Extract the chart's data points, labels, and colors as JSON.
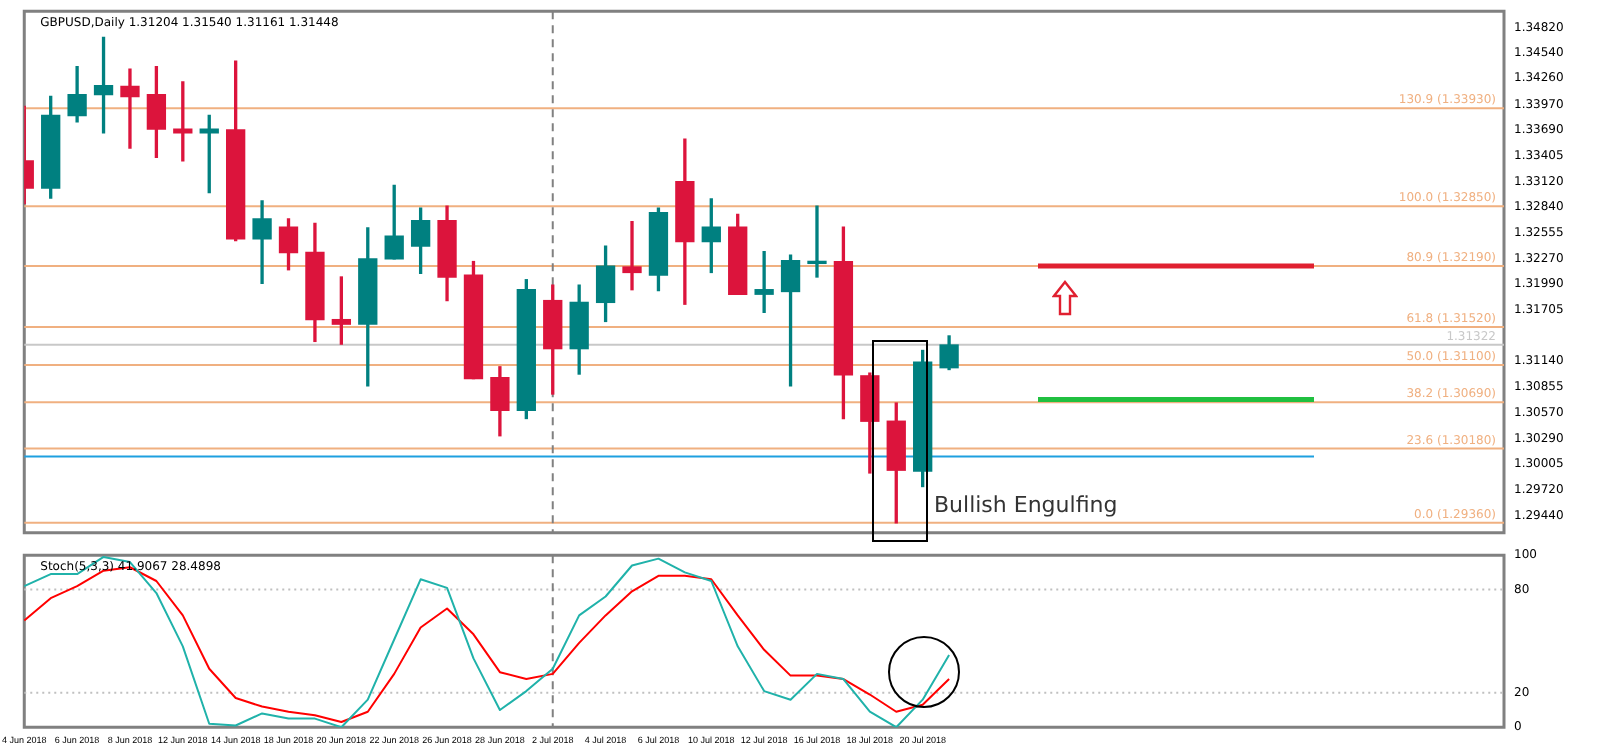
{
  "chart_data": [
    {
      "type": "candlestick",
      "title": "GBPUSD,Daily 1.31204 1.31540 1.31161 1.31448",
      "categories": [
        "4 Jun 2018",
        null,
        "6 Jun 2018",
        null,
        "8 Jun 2018",
        null,
        "12 Jun 2018",
        null,
        "14 Jun 2018",
        null,
        "18 Jun 2018",
        null,
        "20 Jun 2018",
        null,
        "22 Jun 2018",
        null,
        "26 Jun 2018",
        null,
        "28 Jun 2018",
        null,
        "2 Jul 2018",
        null,
        "4 Jul 2018",
        null,
        "6 Jul 2018",
        null,
        "10 Jul 2018",
        null,
        "12 Jul 2018",
        null,
        "16 Jul 2018",
        null,
        "18 Jul 2018",
        null,
        "20 Jul 2018",
        null,
        null,
        null,
        null,
        null,
        null,
        null,
        null,
        null,
        null,
        null,
        null,
        null,
        null,
        null,
        null,
        null,
        null,
        null,
        null,
        null,
        null
      ],
      "ohlc": [
        [
          1.3335,
          1.3395,
          1.3288,
          1.3305
        ],
        [
          1.3305,
          1.3406,
          1.3294,
          1.3385
        ],
        [
          1.3385,
          1.3439,
          1.3378,
          1.3408
        ],
        [
          1.3408,
          1.3471,
          1.3366,
          1.3418
        ],
        [
          1.3417,
          1.3436,
          1.3349,
          1.3406
        ],
        [
          1.3408,
          1.3439,
          1.3339,
          1.337
        ],
        [
          1.337,
          1.3422,
          1.3335,
          1.3366
        ],
        [
          1.3366,
          1.3385,
          1.33,
          1.337
        ],
        [
          1.3369,
          1.3445,
          1.3247,
          1.3249
        ],
        [
          1.3249,
          1.3291,
          1.32,
          1.3271
        ],
        [
          1.3262,
          1.3271,
          1.3215,
          1.3234
        ],
        [
          1.3234,
          1.3266,
          1.3136,
          1.316
        ],
        [
          1.316,
          1.3207,
          1.3133,
          1.3155
        ],
        [
          1.3155,
          1.3261,
          1.3087,
          1.3227
        ],
        [
          1.3227,
          1.3308,
          1.3227,
          1.3252
        ],
        [
          1.3241,
          1.3283,
          1.3211,
          1.3269
        ],
        [
          1.3269,
          1.3285,
          1.3181,
          1.3207
        ],
        [
          1.3209,
          1.3224,
          1.3095,
          1.3095
        ],
        [
          1.3096,
          1.3108,
          1.3032,
          1.306
        ],
        [
          1.306,
          1.3204,
          1.3051,
          1.3193
        ],
        [
          1.3181,
          1.3198,
          1.3078,
          1.3128
        ],
        [
          1.3128,
          1.3198,
          1.31,
          1.3179
        ],
        [
          1.3179,
          1.3241,
          1.3158,
          1.3219
        ],
        [
          1.3218,
          1.3268,
          1.3193,
          1.3212
        ],
        [
          1.3209,
          1.3283,
          1.3192,
          1.3278
        ],
        [
          1.3312,
          1.3359,
          1.3177,
          1.3246
        ],
        [
          1.3246,
          1.3293,
          1.3212,
          1.3262
        ],
        [
          1.3262,
          1.3276,
          1.3188,
          1.3188
        ],
        [
          1.3188,
          1.3235,
          1.3168,
          1.3193
        ],
        [
          1.3191,
          1.3231,
          1.3087,
          1.3225
        ],
        [
          1.3222,
          1.3285,
          1.3207,
          1.3224
        ],
        [
          1.3224,
          1.3262,
          1.3051,
          1.3099
        ],
        [
          1.3098,
          1.3101,
          1.2991,
          1.3048
        ],
        [
          1.3048,
          1.3068,
          1.2936,
          1.2994
        ],
        [
          1.2993,
          1.3126,
          1.2976,
          1.3113
        ],
        [
          1.3107,
          1.3142,
          1.3105,
          1.3132
        ],
        null,
        null,
        null,
        null,
        null,
        null,
        null,
        null,
        null,
        null,
        null,
        null,
        null,
        null,
        null,
        null,
        null,
        null,
        null,
        null,
        null
      ],
      "colors": [
        "#dc143c",
        "#008080",
        "#008080",
        "#008080",
        "#dc143c",
        "#dc143c",
        "#dc143c",
        "#008080",
        "#dc143c",
        "#008080",
        "#dc143c",
        "#dc143c",
        "#dc143c",
        "#008080",
        "#008080",
        "#008080",
        "#dc143c",
        "#dc143c",
        "#dc143c",
        "#008080",
        "#dc143c",
        "#008080",
        "#008080",
        "#dc143c",
        "#008080",
        "#dc143c",
        "#008080",
        "#dc143c",
        "#008080",
        "#008080",
        "#008080",
        "#dc143c",
        "#dc143c",
        "#dc143c",
        "#008080",
        "#008080",
        null,
        null,
        null,
        null,
        null,
        null,
        null,
        null,
        null,
        null,
        null,
        null,
        null,
        null,
        null,
        null,
        null,
        null,
        null,
        null,
        null
      ],
      "ylim": [
        1.2925,
        1.35
      ],
      "yticks": [
        {
          "value": 1.2944,
          "label": "1.29440"
        },
        {
          "value": 1.2972,
          "label": "1.29720"
        },
        {
          "value": 1.30005,
          "label": "1.30005"
        },
        {
          "value": 1.3029,
          "label": "1.30290"
        },
        {
          "value": 1.3057,
          "label": "1.30570"
        },
        {
          "value": 1.30855,
          "label": "1.30855"
        },
        {
          "value": 1.3114,
          "label": "1.31140"
        },
        {
          "value": 1.31705,
          "label": "1.31705"
        },
        {
          "value": 1.3199,
          "label": "1.31990"
        },
        {
          "value": 1.3227,
          "label": "1.32270"
        },
        {
          "value": 1.32555,
          "label": "1.32555"
        },
        {
          "value": 1.3284,
          "label": "1.32840"
        },
        {
          "value": 1.3312,
          "label": "1.33120"
        },
        {
          "value": 1.33405,
          "label": "1.33405"
        },
        {
          "value": 1.3369,
          "label": "1.33690"
        },
        {
          "value": 1.3397,
          "label": "1.33970"
        },
        {
          "value": 1.3426,
          "label": "1.34260"
        },
        {
          "value": 1.3454,
          "label": "1.34540"
        },
        {
          "value": 1.3482,
          "label": "1.34820"
        }
      ],
      "tick_labels": "y",
      "grid": false,
      "ref_lines": [
        {
          "axis": "y",
          "value": 1.2936,
          "label": "0.0 (1.29360)",
          "color": "#f0b080"
        },
        {
          "axis": "y",
          "value": 1.3018,
          "label": "23.6 (1.30180)",
          "color": "#f0b080"
        },
        {
          "axis": "y",
          "value": 1.3069,
          "label": "38.2 (1.30690)",
          "color": "#f0b080"
        },
        {
          "axis": "y",
          "value": 1.311,
          "label": "50.0 (1.31100)",
          "color": "#f0b080"
        },
        {
          "axis": "y",
          "value": 1.3152,
          "label": "61.8 (1.31520)",
          "color": "#f0b080"
        },
        {
          "axis": "y",
          "value": 1.3219,
          "label": "80.9 (1.32190)",
          "color": "#f0b080"
        },
        {
          "axis": "y",
          "value": 1.3285,
          "label": "100.0 (1.32850)",
          "color": "#f0b080"
        },
        {
          "axis": "y",
          "value": 1.3393,
          "label": "130.9 (1.33930)",
          "color": "#f0b080"
        },
        {
          "axis": "y",
          "value": 1.31322,
          "label": "1.31322",
          "color": "#c8c8c8"
        },
        {
          "axis": "y",
          "value": 1.3009,
          "color": "#1ea0e0"
        },
        {
          "axis": "y",
          "value": 1.3219,
          "color": "#e02030"
        },
        {
          "axis": "y",
          "value": 1.3072,
          "color": "#20c040"
        },
        {
          "axis": "x",
          "value": "2 Jul 2018",
          "color": "#808080",
          "line_style": "dashed"
        }
      ],
      "annotations": [
        "Bullish Engulfing"
      ]
    },
    {
      "type": "line",
      "title": "Stoch(5,3,3) 41.9067 28.4898",
      "categories": [
        "4 Jun 2018",
        null,
        "6 Jun 2018",
        null,
        "8 Jun 2018",
        null,
        "12 Jun 2018",
        null,
        "14 Jun 2018",
        null,
        "18 Jun 2018",
        null,
        "20 Jun 2018",
        null,
        "22 Jun 2018",
        null,
        "26 Jun 2018",
        null,
        "28 Jun 2018",
        null,
        "2 Jul 2018",
        null,
        "4 Jul 2018",
        null,
        "6 Jul 2018",
        null,
        "10 Jul 2018",
        null,
        "12 Jul 2018",
        null,
        "16 Jul 2018",
        null,
        "18 Jul 2018",
        null,
        "20 Jul 2018",
        null,
        null,
        null,
        null,
        null,
        null,
        null,
        null,
        null,
        null,
        null,
        null,
        null,
        null,
        null,
        null,
        null,
        null,
        null,
        null,
        null,
        null
      ],
      "series": [
        {
          "color": "#20b2aa",
          "values": [
            82,
            89,
            89,
            99,
            96,
            78,
            47,
            2,
            1,
            8,
            5,
            5,
            0,
            16,
            51,
            86,
            81,
            40,
            10,
            21,
            34,
            65,
            76,
            94,
            98,
            90,
            85,
            47,
            21,
            16,
            31,
            28,
            9,
            0,
            16,
            42,
            null,
            null,
            null,
            null,
            null,
            null,
            null,
            null,
            null,
            null,
            null,
            null,
            null,
            null,
            null,
            null,
            null,
            null,
            null,
            null,
            null
          ]
        },
        {
          "color": "#ff0000",
          "values": [
            62,
            75,
            82,
            91,
            93,
            85,
            65,
            34,
            17,
            12,
            9,
            7,
            3,
            9,
            31,
            58,
            69,
            54,
            32,
            28,
            31,
            49,
            65,
            79,
            88,
            88,
            86,
            65,
            45,
            30,
            30,
            28,
            19,
            9,
            13,
            28,
            null,
            null,
            null,
            null,
            null,
            null,
            null,
            null,
            null,
            null,
            null,
            null,
            null,
            null,
            null,
            null,
            null,
            null,
            null,
            null,
            null
          ]
        }
      ],
      "ylim": [
        0,
        100
      ],
      "yticks": [
        0,
        20,
        80,
        100
      ],
      "grid": false,
      "marker": "none",
      "line_style": "solid",
      "ref_lines": [
        {
          "axis": "y",
          "value": 80,
          "color": "#c0c0c0",
          "line_style": "dotted"
        },
        {
          "axis": "y",
          "value": 20,
          "color": "#c0c0c0",
          "line_style": "dotted"
        },
        {
          "axis": "x",
          "value": "2 Jul 2018",
          "color": "#808080",
          "line_style": "dashed"
        }
      ]
    }
  ]
}
